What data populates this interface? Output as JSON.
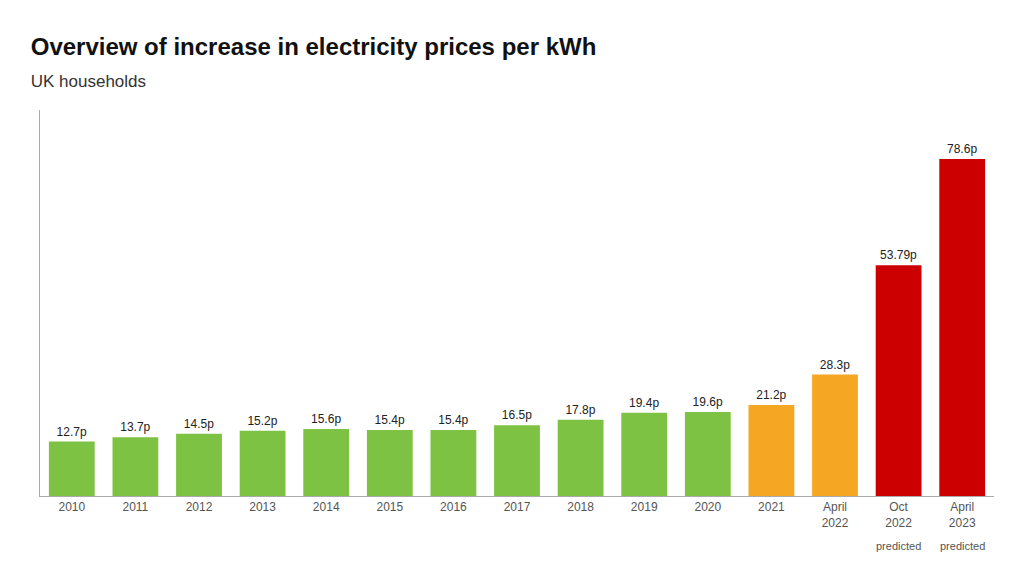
{
  "chart_data": {
    "type": "bar",
    "title": "Overview of increase in electricity prices per kWh",
    "subtitle": "UK households",
    "categories": [
      "2010",
      "2011",
      "2012",
      "2013",
      "2014",
      "2015",
      "2016",
      "2017",
      "2018",
      "2019",
      "2020",
      "2021",
      "April\n2022",
      "Oct\n2022",
      "April\n2023"
    ],
    "values": [
      12.7,
      13.7,
      14.5,
      15.2,
      15.6,
      15.4,
      15.4,
      16.5,
      17.8,
      19.4,
      19.6,
      21.2,
      28.3,
      53.79,
      78.6
    ],
    "value_labels": [
      "12.7p",
      "13.7p",
      "14.5p",
      "15.2p",
      "15.6p",
      "15.4p",
      "15.4p",
      "16.5p",
      "17.8p",
      "19.4p",
      "19.6p",
      "21.2p",
      "28.3p",
      "53.79p",
      "78.6p"
    ],
    "colors": [
      "#7dc242",
      "#7dc242",
      "#7dc242",
      "#7dc242",
      "#7dc242",
      "#7dc242",
      "#7dc242",
      "#7dc242",
      "#7dc242",
      "#7dc242",
      "#7dc242",
      "#f5a623",
      "#f5a623",
      "#cc0000",
      "#cc0000"
    ],
    "data_labels": true,
    "annotations": [
      {
        "text": "predicted",
        "category": "Oct\n2022"
      },
      {
        "text": "predicted",
        "category": "April\n2023"
      }
    ],
    "ylim": [
      0,
      90
    ],
    "tick_labels": "x",
    "grid": false
  }
}
